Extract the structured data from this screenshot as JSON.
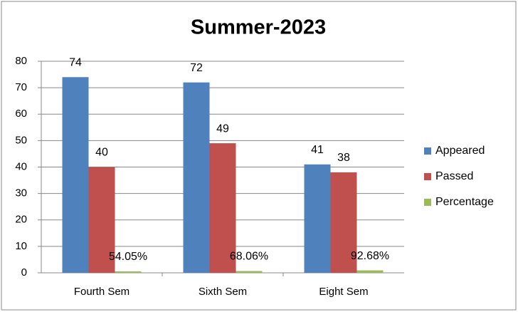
{
  "chart_data": {
    "type": "bar",
    "title": "Summer-2023",
    "categories": [
      "Fourth Sem",
      "Sixth Sem",
      "Eight Sem"
    ],
    "series": [
      {
        "name": "Appeared",
        "color": "#4f81bd",
        "values": [
          74,
          72,
          41
        ]
      },
      {
        "name": "Passed",
        "color": "#c0504d",
        "values": [
          40,
          49,
          38
        ]
      },
      {
        "name": "Percentage",
        "color": "#9bbb59",
        "values": [
          0.5405,
          0.6806,
          0.9268
        ],
        "value_labels": [
          "54.05%",
          "68.06%",
          "92.68%"
        ]
      }
    ],
    "ylim": [
      0,
      80
    ],
    "yticks": [
      0,
      10,
      20,
      30,
      40,
      50,
      60,
      70,
      80
    ],
    "grid": true,
    "legend": "right"
  }
}
